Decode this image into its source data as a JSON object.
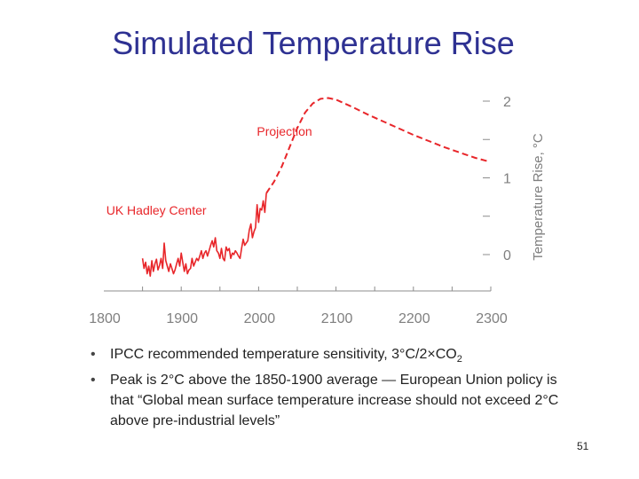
{
  "slide": {
    "title": "Simulated Temperature Rise",
    "bullets": [
      {
        "text": "IPCC recommended temperature sensitivity, 3°C/2×CO",
        "sub": "2"
      },
      {
        "text": "Peak is 2°C above the 1850-1900 average — European Union policy is that “Global mean surface temperature increase should not exceed 2°C above pre-industrial levels”",
        "sub": ""
      }
    ],
    "page_number": "51"
  },
  "chart_data": {
    "type": "line",
    "title": "",
    "xlabel": "",
    "ylabel": "Temperature Rise, °C",
    "xlim": [
      1800,
      2300
    ],
    "ylim": [
      -0.35,
      2.1
    ],
    "x_ticks": [
      "1800",
      "1900",
      "2000",
      "2100",
      "2200",
      "2300"
    ],
    "y_ticks": [
      "0",
      "1",
      "2"
    ],
    "grid": false,
    "series": [
      {
        "name": "UK Hadley Center",
        "style": "solid",
        "color": "#e8262a",
        "points": [
          [
            1850,
            -0.05
          ],
          [
            1852,
            -0.18
          ],
          [
            1854,
            -0.1
          ],
          [
            1856,
            -0.25
          ],
          [
            1858,
            -0.15
          ],
          [
            1860,
            -0.28
          ],
          [
            1862,
            -0.08
          ],
          [
            1864,
            -0.22
          ],
          [
            1866,
            -0.12
          ],
          [
            1868,
            -0.06
          ],
          [
            1870,
            -0.2
          ],
          [
            1872,
            -0.14
          ],
          [
            1874,
            -0.05
          ],
          [
            1876,
            -0.18
          ],
          [
            1878,
            0.15
          ],
          [
            1880,
            -0.08
          ],
          [
            1882,
            -0.15
          ],
          [
            1884,
            -0.22
          ],
          [
            1886,
            -0.12
          ],
          [
            1888,
            -0.18
          ],
          [
            1890,
            -0.25
          ],
          [
            1892,
            -0.2
          ],
          [
            1894,
            -0.12
          ],
          [
            1896,
            -0.05
          ],
          [
            1898,
            -0.15
          ],
          [
            1900,
            0.02
          ],
          [
            1902,
            -0.1
          ],
          [
            1904,
            -0.22
          ],
          [
            1906,
            -0.12
          ],
          [
            1908,
            -0.25
          ],
          [
            1910,
            -0.2
          ],
          [
            1912,
            -0.18
          ],
          [
            1914,
            -0.05
          ],
          [
            1916,
            -0.15
          ],
          [
            1918,
            -0.1
          ],
          [
            1920,
            -0.05
          ],
          [
            1922,
            -0.08
          ],
          [
            1924,
            -0.02
          ],
          [
            1926,
            0.05
          ],
          [
            1928,
            -0.05
          ],
          [
            1930,
            0.02
          ],
          [
            1932,
            0.05
          ],
          [
            1934,
            -0.02
          ],
          [
            1936,
            0.05
          ],
          [
            1938,
            0.12
          ],
          [
            1940,
            0.18
          ],
          [
            1942,
            0.1
          ],
          [
            1944,
            0.22
          ],
          [
            1946,
            0.05
          ],
          [
            1948,
            0.02
          ],
          [
            1950,
            -0.05
          ],
          [
            1952,
            0.08
          ],
          [
            1954,
            -0.05
          ],
          [
            1956,
            -0.08
          ],
          [
            1958,
            0.1
          ],
          [
            1960,
            0.05
          ],
          [
            1962,
            0.08
          ],
          [
            1964,
            -0.05
          ],
          [
            1966,
            0.02
          ],
          [
            1968,
            0.0
          ],
          [
            1970,
            0.05
          ],
          [
            1972,
            0.02
          ],
          [
            1974,
            -0.02
          ],
          [
            1976,
            -0.05
          ],
          [
            1978,
            0.08
          ],
          [
            1980,
            0.2
          ],
          [
            1982,
            0.12
          ],
          [
            1984,
            0.15
          ],
          [
            1986,
            0.18
          ],
          [
            1988,
            0.32
          ],
          [
            1990,
            0.4
          ],
          [
            1992,
            0.22
          ],
          [
            1994,
            0.3
          ],
          [
            1996,
            0.35
          ],
          [
            1998,
            0.65
          ],
          [
            2000,
            0.42
          ],
          [
            2002,
            0.6
          ],
          [
            2004,
            0.58
          ],
          [
            2006,
            0.7
          ],
          [
            2008,
            0.55
          ],
          [
            2010,
            0.8
          ]
        ]
      },
      {
        "name": "Projection",
        "style": "dashed",
        "color": "#e8262a",
        "points": [
          [
            2010,
            0.8
          ],
          [
            2020,
            0.95
          ],
          [
            2030,
            1.15
          ],
          [
            2040,
            1.4
          ],
          [
            2050,
            1.65
          ],
          [
            2060,
            1.85
          ],
          [
            2070,
            1.97
          ],
          [
            2080,
            2.03
          ],
          [
            2090,
            2.04
          ],
          [
            2100,
            2.02
          ],
          [
            2120,
            1.93
          ],
          [
            2140,
            1.83
          ],
          [
            2160,
            1.74
          ],
          [
            2180,
            1.65
          ],
          [
            2200,
            1.56
          ],
          [
            2220,
            1.48
          ],
          [
            2240,
            1.4
          ],
          [
            2260,
            1.33
          ],
          [
            2280,
            1.26
          ],
          [
            2295,
            1.22
          ]
        ]
      }
    ],
    "annotations": [
      {
        "text": "Projection",
        "x": 2000,
        "y": 1.55
      },
      {
        "text": "UK Hadley Center",
        "x": 1810,
        "y": 0.52
      }
    ]
  }
}
